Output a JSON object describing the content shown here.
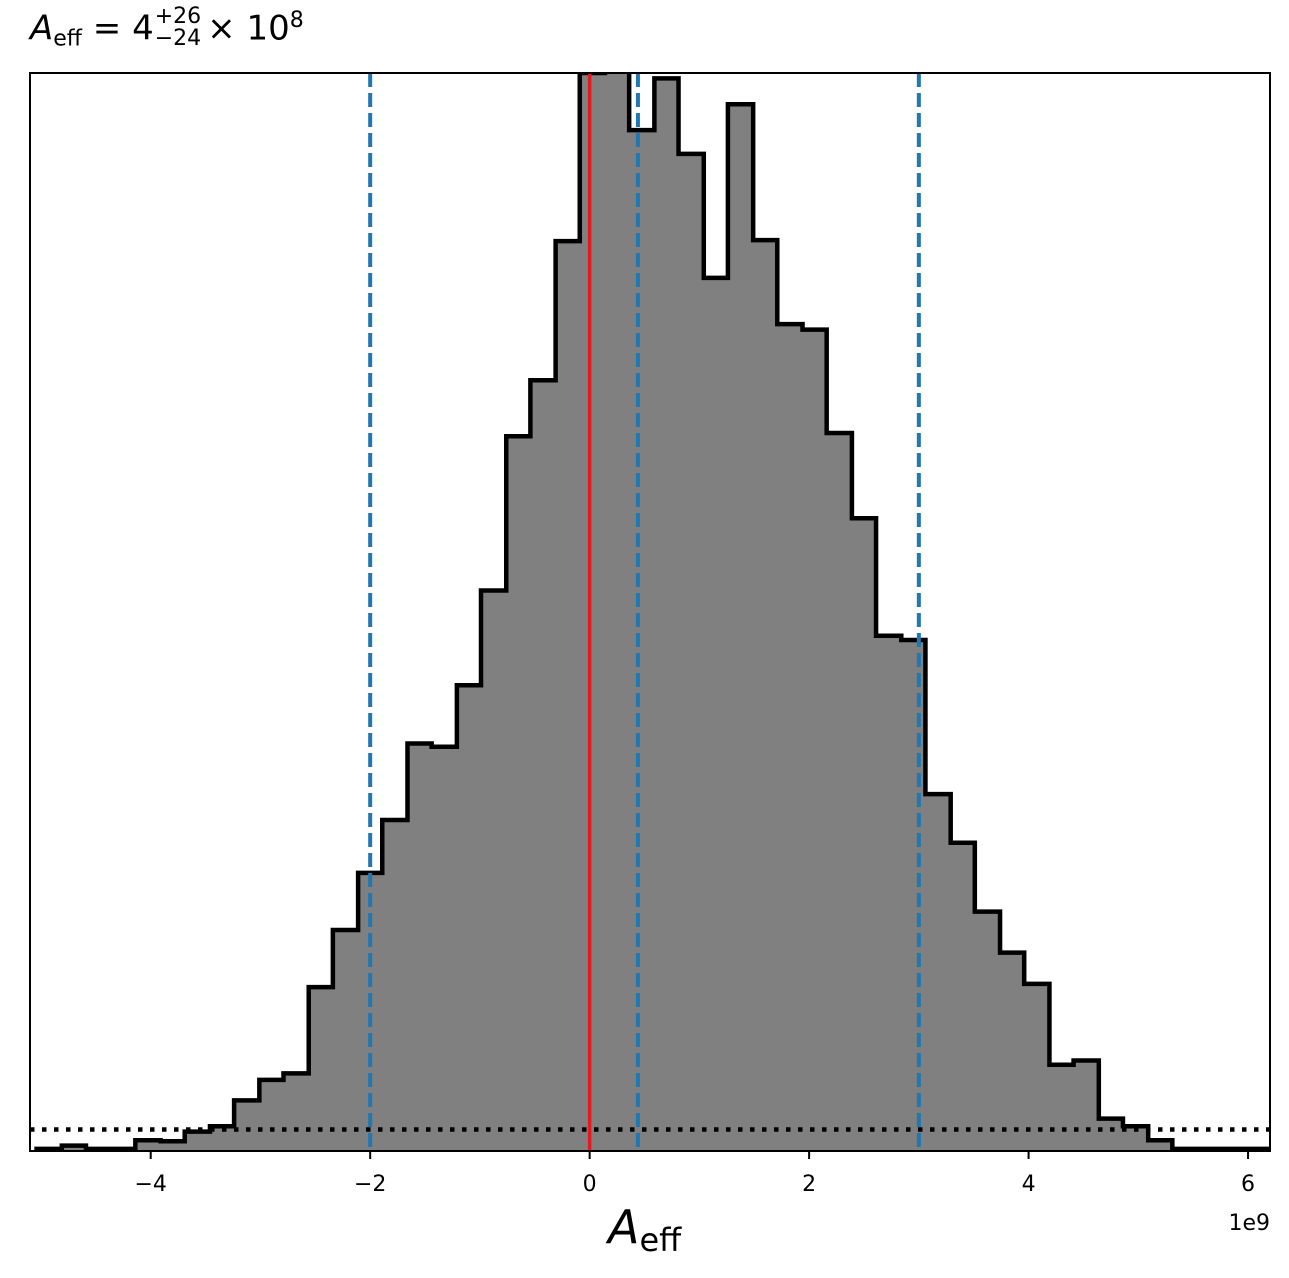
{
  "chart_data": {
    "type": "histogram",
    "title": {
      "symbol": "A",
      "subscript": "eff",
      "equals": "= 4",
      "upper": "+26",
      "lower": "−24",
      "multiplier": "× 10",
      "exponent": "8"
    },
    "xlabel": {
      "symbol": "A",
      "subscript": "eff"
    },
    "x_offset_label": "1e9",
    "xlim": [
      -5.1,
      6.2
    ],
    "ylim": [
      0,
      1
    ],
    "x_ticks": [
      -4,
      -2,
      0,
      2,
      4,
      6
    ],
    "x_tick_labels": [
      "−4",
      "−2",
      "0",
      "2",
      "4",
      "6"
    ],
    "bin_edges": [
      -5.04,
      -4.81,
      -4.59,
      -4.36,
      -4.14,
      -3.91,
      -3.69,
      -3.46,
      -3.24,
      -3.01,
      -2.79,
      -2.56,
      -2.34,
      -2.11,
      -1.89,
      -1.66,
      -1.44,
      -1.21,
      -0.99,
      -0.76,
      -0.54,
      -0.31,
      -0.09,
      0.14,
      0.36,
      0.59,
      0.81,
      1.04,
      1.26,
      1.49,
      1.71,
      1.94,
      2.16,
      2.39,
      2.61,
      2.84,
      3.06,
      3.29,
      3.51,
      3.74,
      3.96,
      4.19,
      4.41,
      4.64,
      4.86,
      5.09,
      5.31,
      5.54,
      5.76,
      5.99,
      6.21
    ],
    "counts": [
      0.002,
      0.005,
      0.002,
      0.002,
      0.01,
      0.009,
      0.018,
      0.023,
      0.047,
      0.066,
      0.072,
      0.152,
      0.205,
      0.258,
      0.307,
      0.378,
      0.375,
      0.432,
      0.52,
      0.663,
      0.715,
      0.844,
      1.0,
      1.037,
      0.947,
      0.995,
      0.925,
      0.81,
      0.971,
      0.845,
      0.767,
      0.762,
      0.666,
      0.587,
      0.478,
      0.474,
      0.331,
      0.286,
      0.222,
      0.184,
      0.155,
      0.08,
      0.084,
      0.03,
      0.023,
      0.01,
      0.002,
      0.002,
      0.002,
      0.002
    ],
    "lines": {
      "truth": {
        "x": 0.0,
        "color": "#e41a1c",
        "style": "solid"
      },
      "quantiles": {
        "x": [
          -2.0,
          0.44,
          3.0
        ],
        "color": "#1f77b4",
        "style": "dashed"
      },
      "baseline": {
        "y": 0.02,
        "color": "#000000",
        "style": "dotted"
      }
    },
    "fill_color": "#808080",
    "edge_color": "#000000",
    "grid": false
  }
}
